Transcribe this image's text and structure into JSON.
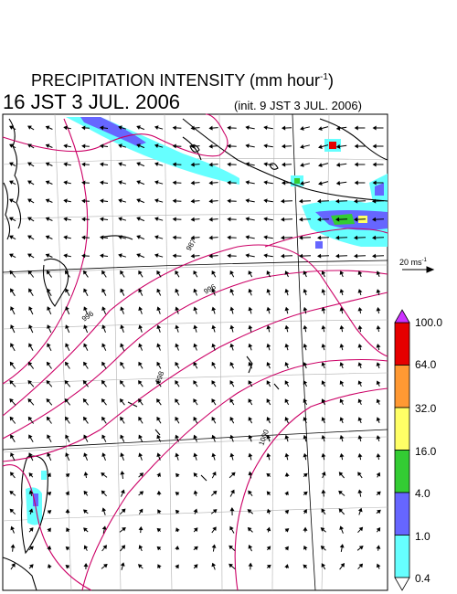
{
  "header": {
    "title_main": "PRECIPITATION INTENSITY (mm hour",
    "title_exp": "-1",
    "title_close": ")",
    "valid_time": "16 JST 3 JUL. 2006",
    "init_time": "(init. 9 JST 3 JUL. 2006)"
  },
  "reference_vector": {
    "label": "20 ms",
    "exp": "-1"
  },
  "colorbar": {
    "labels": [
      "100.0",
      "64.0",
      "32.0",
      "16.0",
      "4.0",
      "1.0",
      "0.4"
    ],
    "colors": [
      "#e60000",
      "#ff9933",
      "#ffff66",
      "#33cc33",
      "#6666ff",
      "#66ffff"
    ],
    "over_color": "#cc33ff"
  },
  "contours": {
    "line_color": "#cc0066",
    "labels": [
      "987",
      "996",
      "996",
      "998",
      "1000"
    ]
  },
  "colors": {
    "land": "#000000",
    "grid": "#aaaaaa",
    "vector": "#000000"
  }
}
